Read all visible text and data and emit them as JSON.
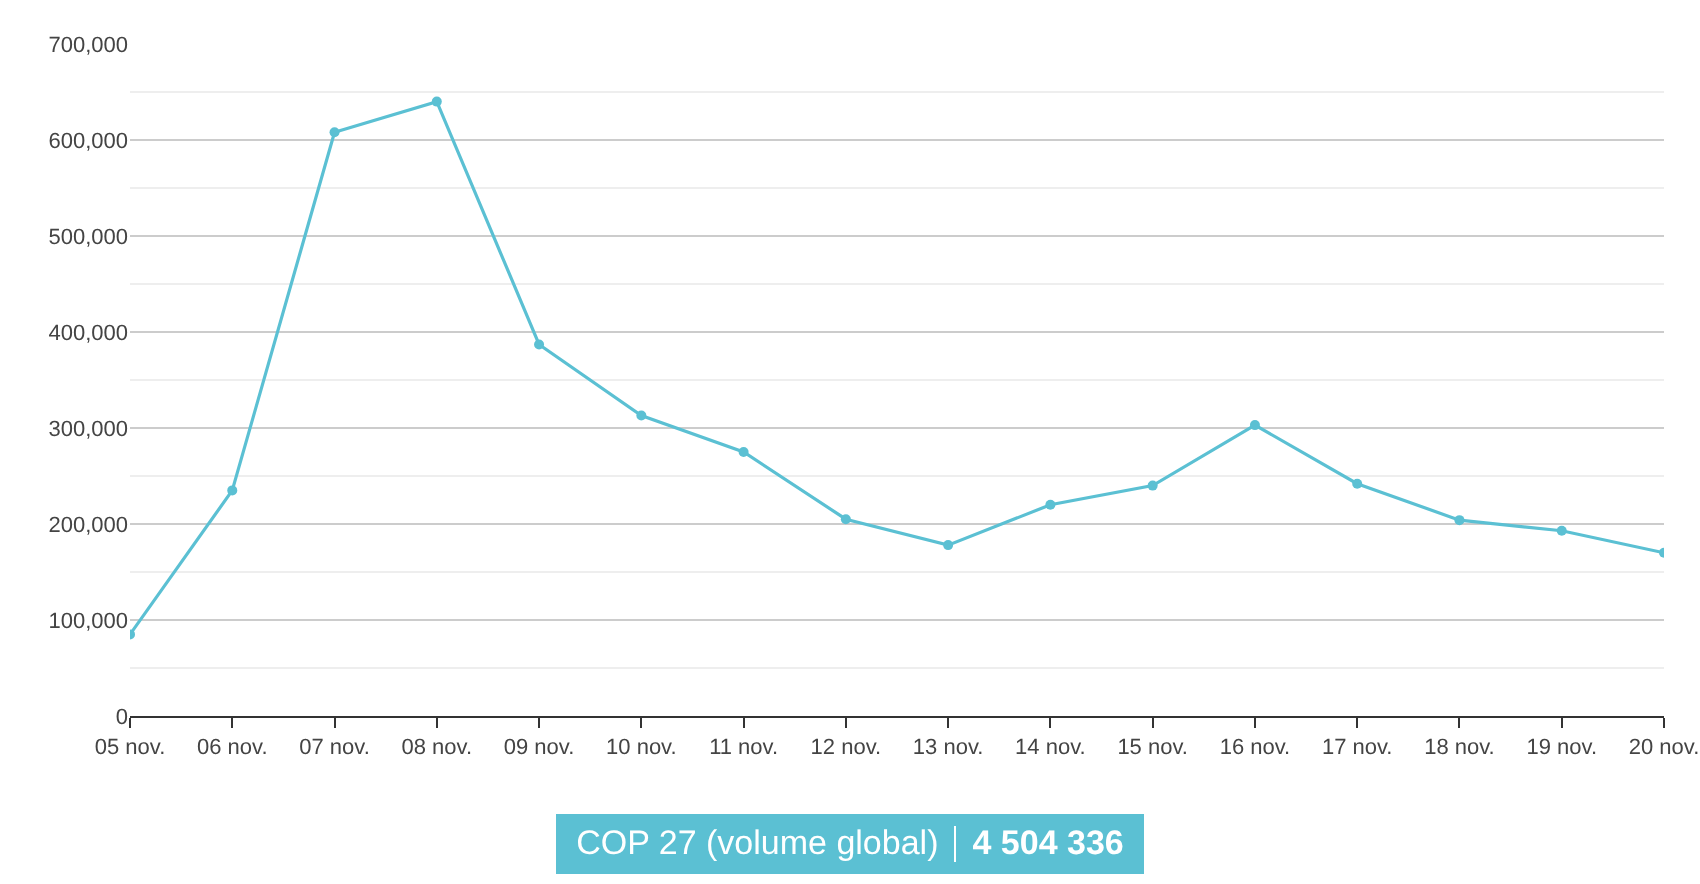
{
  "chart_data": {
    "type": "line",
    "categories": [
      "05 nov.",
      "06 nov.",
      "07 nov.",
      "08 nov.",
      "09 nov.",
      "10 nov.",
      "11 nov.",
      "12 nov.",
      "13 nov.",
      "14 nov.",
      "15 nov.",
      "16 nov.",
      "17 nov.",
      "18 nov.",
      "19 nov.",
      "20 nov."
    ],
    "series": [
      {
        "name": "COP 27 (volume global)",
        "color": "#5bc0d3",
        "values": [
          85000,
          235000,
          608000,
          640000,
          387000,
          313000,
          275000,
          205000,
          178000,
          220000,
          240000,
          303000,
          242000,
          204000,
          193000,
          170000
        ]
      }
    ],
    "annotations": [
      "4 504 336"
    ],
    "ylim": [
      0,
      700000
    ],
    "yticks": [
      0,
      {
        "value": 100000,
        "label": "100,000"
      },
      {
        "value": 200000,
        "label": "200,000"
      },
      {
        "value": 300000,
        "label": "300,000"
      },
      {
        "value": 400000,
        "label": "400,000"
      },
      {
        "value": 500000,
        "label": "500,000"
      },
      {
        "value": 600000,
        "label": "600,000"
      },
      {
        "value": 700000,
        "label": "700,000"
      }
    ],
    "grid": "y",
    "legend": "bottom",
    "marker": "circle",
    "line_style": "solid"
  }
}
